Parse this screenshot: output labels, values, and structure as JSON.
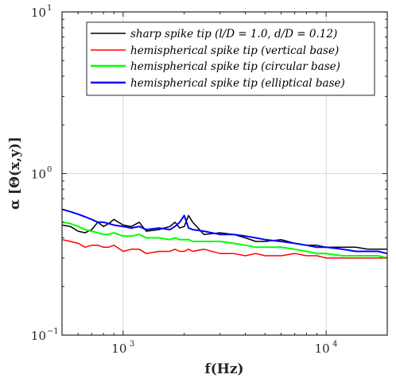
{
  "chart_data": {
    "type": "line",
    "xlabel": "f(Hz)",
    "ylabel": "α [Θ(x,y)]",
    "xscale": "log",
    "yscale": "log",
    "xlim": [
      500,
      20000
    ],
    "ylim": [
      0.1,
      10
    ],
    "grid": true,
    "legend_position": "top-right",
    "x_ticks": [
      {
        "value": 1000,
        "base": "10",
        "exp": "3"
      },
      {
        "value": 10000,
        "base": "10",
        "exp": "4"
      }
    ],
    "y_ticks": [
      {
        "value": 0.1,
        "base": "10",
        "exp": "−1"
      },
      {
        "value": 1,
        "base": "10",
        "exp": "0"
      },
      {
        "value": 10,
        "base": "10",
        "exp": "1"
      }
    ],
    "series": [
      {
        "name": "sharp spike tip (l/D = 1.0,  d/D = 0.12)",
        "color": "#000000",
        "x": [
          500,
          550,
          600,
          650,
          700,
          750,
          800,
          850,
          900,
          1000,
          1100,
          1200,
          1300,
          1500,
          1700,
          1800,
          1900,
          2000,
          2100,
          2200,
          2500,
          3000,
          3500,
          4000,
          4500,
          5000,
          6000,
          7000,
          8000,
          9000,
          10000,
          12000,
          14000,
          16000,
          18000,
          20000
        ],
        "y": [
          0.48,
          0.47,
          0.44,
          0.43,
          0.45,
          0.5,
          0.47,
          0.49,
          0.52,
          0.48,
          0.47,
          0.5,
          0.44,
          0.45,
          0.47,
          0.5,
          0.46,
          0.47,
          0.55,
          0.5,
          0.42,
          0.43,
          0.42,
          0.4,
          0.38,
          0.38,
          0.39,
          0.37,
          0.36,
          0.36,
          0.35,
          0.35,
          0.35,
          0.34,
          0.34,
          0.34
        ]
      },
      {
        "name": "hemispherical spike tip (vertical base)",
        "color": "#ff0000",
        "x": [
          500,
          550,
          600,
          650,
          700,
          750,
          800,
          850,
          900,
          1000,
          1100,
          1200,
          1300,
          1500,
          1700,
          1800,
          1900,
          2000,
          2100,
          2200,
          2500,
          3000,
          3500,
          4000,
          4500,
          5000,
          6000,
          7000,
          8000,
          9000,
          10000,
          12000,
          14000,
          16000,
          18000,
          20000
        ],
        "y": [
          0.39,
          0.38,
          0.37,
          0.35,
          0.36,
          0.36,
          0.35,
          0.35,
          0.36,
          0.33,
          0.34,
          0.34,
          0.32,
          0.33,
          0.33,
          0.34,
          0.33,
          0.33,
          0.34,
          0.33,
          0.34,
          0.32,
          0.32,
          0.31,
          0.32,
          0.31,
          0.31,
          0.32,
          0.31,
          0.31,
          0.3,
          0.3,
          0.3,
          0.3,
          0.3,
          0.3
        ]
      },
      {
        "name": "hemispherical spike tip (circular base)",
        "color": "#00ff00",
        "x": [
          500,
          550,
          600,
          650,
          700,
          750,
          800,
          850,
          900,
          1000,
          1100,
          1200,
          1300,
          1500,
          1700,
          1800,
          1900,
          2000,
          2100,
          2200,
          2500,
          3000,
          3500,
          4000,
          4500,
          5000,
          6000,
          7000,
          8000,
          9000,
          10000,
          12000,
          14000,
          16000,
          18000,
          20000
        ],
        "y": [
          0.5,
          0.49,
          0.47,
          0.45,
          0.44,
          0.43,
          0.42,
          0.42,
          0.43,
          0.41,
          0.41,
          0.42,
          0.4,
          0.4,
          0.39,
          0.4,
          0.39,
          0.39,
          0.39,
          0.38,
          0.38,
          0.38,
          0.37,
          0.36,
          0.35,
          0.35,
          0.35,
          0.34,
          0.33,
          0.32,
          0.32,
          0.31,
          0.31,
          0.31,
          0.31,
          0.3
        ]
      },
      {
        "name": "hemispherical spike tip (elliptical base)",
        "color": "#0000ff",
        "x": [
          500,
          550,
          600,
          650,
          700,
          750,
          800,
          850,
          900,
          1000,
          1100,
          1200,
          1300,
          1500,
          1700,
          1800,
          1900,
          2000,
          2100,
          2200,
          2500,
          3000,
          3500,
          4000,
          4500,
          5000,
          6000,
          7000,
          8000,
          9000,
          10000,
          12000,
          14000,
          16000,
          18000,
          20000
        ],
        "y": [
          0.6,
          0.58,
          0.56,
          0.54,
          0.52,
          0.5,
          0.5,
          0.49,
          0.48,
          0.47,
          0.46,
          0.47,
          0.45,
          0.46,
          0.45,
          0.47,
          0.5,
          0.55,
          0.46,
          0.45,
          0.44,
          0.42,
          0.42,
          0.41,
          0.4,
          0.39,
          0.38,
          0.37,
          0.36,
          0.35,
          0.35,
          0.34,
          0.33,
          0.33,
          0.33,
          0.32
        ]
      }
    ]
  }
}
